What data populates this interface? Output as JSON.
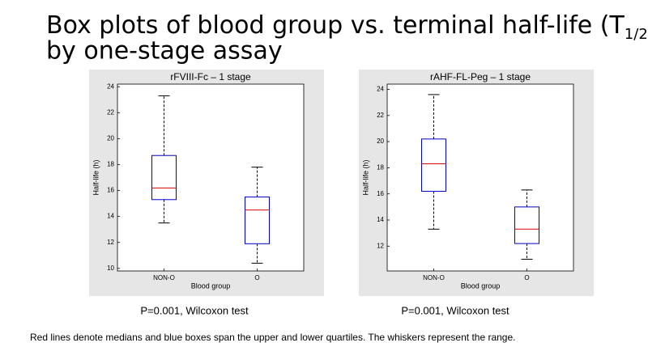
{
  "slide": {
    "title": [
      "Box plots of blood group vs. terminal half-life (T",
      "1/2",
      ")"
    ],
    "title_line2": "by one-stage assay",
    "captions": [
      "P=0.001, Wilcoxon test",
      "P=0.001, Wilcoxon test"
    ],
    "footnote": "Red lines denote medians and blue boxes span the upper and lower quartiles. The whiskers represent the range."
  },
  "chart_data": [
    {
      "type": "box",
      "title": "rFVIII-Fc – 1 stage",
      "xlabel": "Blood group",
      "ylabel": "Half-life (h)",
      "categories": [
        "NON-O",
        "O"
      ],
      "boxes": [
        {
          "min": 13.5,
          "q1": 15.3,
          "median": 16.2,
          "q3": 18.7,
          "max": 23.3
        },
        {
          "min": 10.4,
          "q1": 11.9,
          "median": 14.5,
          "q3": 15.5,
          "max": 17.8
        }
      ],
      "ylim": [
        9.8,
        24.2
      ],
      "yticks": [
        10,
        12,
        14,
        16,
        18,
        20,
        22,
        24
      ],
      "box_color": "#0000c8",
      "median_color": "#e00000",
      "whisker_color": "#000000"
    },
    {
      "type": "box",
      "title": "rAHF-FL-Peg – 1 stage",
      "xlabel": "Blood group",
      "ylabel": "Half-life (h)",
      "categories": [
        "NON-O",
        "O"
      ],
      "boxes": [
        {
          "min": 13.3,
          "q1": 16.2,
          "median": 18.3,
          "q3": 20.2,
          "max": 23.6
        },
        {
          "min": 11.0,
          "q1": 12.2,
          "median": 13.3,
          "q3": 15.0,
          "max": 16.3
        }
      ],
      "ylim": [
        10.1,
        24.4
      ],
      "yticks": [
        12,
        14,
        16,
        18,
        20,
        22,
        24
      ],
      "box_color": "#0000c8",
      "median_color": "#e00000",
      "whisker_color": "#000000"
    }
  ]
}
